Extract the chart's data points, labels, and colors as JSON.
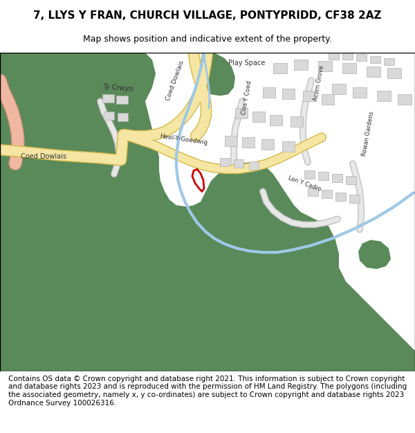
{
  "title": "7, LLYS Y FRAN, CHURCH VILLAGE, PONTYPRIDD, CF38 2AZ",
  "subtitle": "Map shows position and indicative extent of the property.",
  "footer": "Contains OS data © Crown copyright and database right 2021. This information is subject to Crown copyright and database rights 2023 and is reproduced with the permission of HM Land Registry. The polygons (including the associated geometry, namely x, y co-ordinates) are subject to Crown copyright and database rights 2023 Ordnance Survey 100026316.",
  "bg_color": "#ffffff",
  "map_bg": "#f5f5f5",
  "green_color": "#5a8a5a",
  "road_yellow": "#f5e6a3",
  "road_outline": "#d4b84a",
  "building_color": "#d9d9d9",
  "building_edge": "#b0b0b0",
  "water_color": "#9ec8e8",
  "red_plot": "#cc0000",
  "salmon_road": "#f0b8a0",
  "salmon_outline": "#d0907a",
  "title_fontsize": 11,
  "subtitle_fontsize": 9,
  "footer_fontsize": 7.5,
  "label_color": "#333333"
}
